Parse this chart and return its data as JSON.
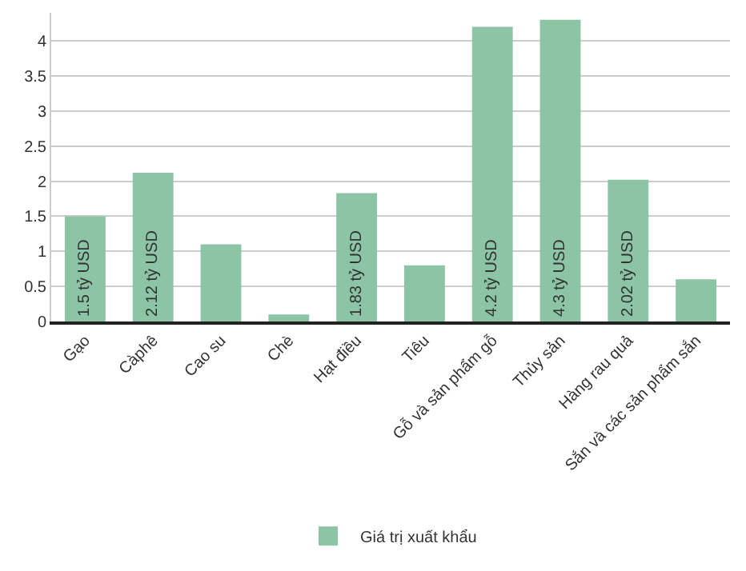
{
  "chart_data": {
    "type": "bar",
    "categories": [
      "Gạo",
      "Càphê",
      "Cao su",
      "Chè",
      "Hạt điều",
      "Tiêu",
      "Gỗ và sản phẩm gỗ",
      "Thủy sản",
      "Hàng rau quả",
      "Sắn và các sản phẩm sắn"
    ],
    "series": [
      {
        "name": "Giá trị xuất khẩu",
        "color": "#8cc5a6",
        "values": [
          1.5,
          2.12,
          1.1,
          0.1,
          1.83,
          0.8,
          4.2,
          4.3,
          2.02,
          0.6
        ],
        "value_labels": [
          "1.5 tỷ USD",
          "2.12 tỷ USD",
          null,
          null,
          "1.83 tỷ USD",
          null,
          "4.2 tỷ USD",
          "4.3 tỷ USD",
          "2.02 tỷ USD",
          null
        ]
      }
    ],
    "yticks": [
      0,
      0.5,
      1,
      1.5,
      2,
      2.5,
      3,
      3.5,
      4
    ],
    "ylim": [
      0,
      4.4
    ],
    "grid": "y",
    "legend": "bottom"
  }
}
